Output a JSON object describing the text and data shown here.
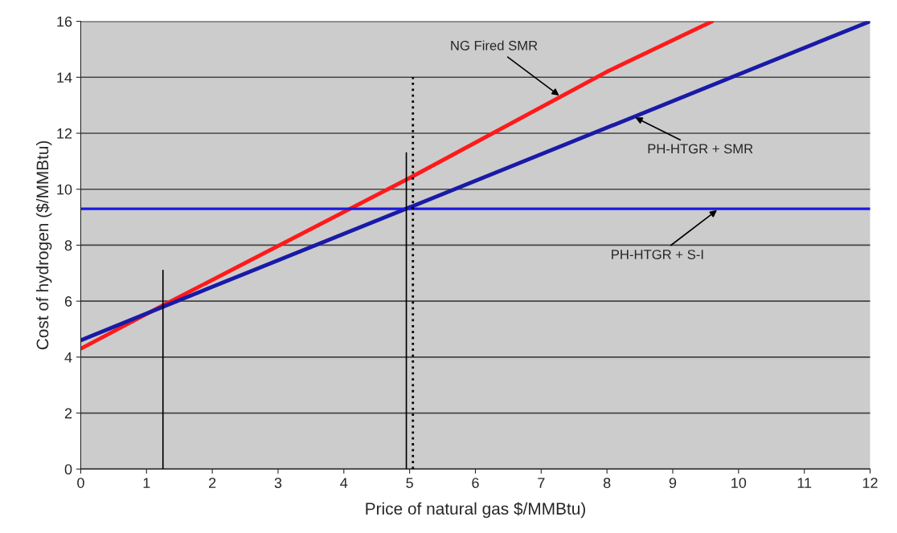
{
  "chart_data": {
    "type": "line",
    "xlabel": "Price of natural gas $/MMBtu)",
    "ylabel": "Cost of hydrogen ($/MMBtu)",
    "xlim": [
      0,
      12
    ],
    "ylim": [
      0,
      16
    ],
    "xticks": [
      0,
      1,
      2,
      3,
      4,
      5,
      6,
      7,
      8,
      9,
      10,
      11,
      12
    ],
    "yticks": [
      0,
      2,
      4,
      6,
      8,
      10,
      12,
      14,
      16
    ],
    "grid": "y",
    "legend": false,
    "marker": "none",
    "series": [
      {
        "color": "#ff1a1a",
        "x": [
          0,
          1.25,
          5,
          8,
          9.6
        ],
        "values": [
          4.3,
          5.85,
          10.4,
          14.2,
          16
        ]
      },
      {
        "color": "#1a1aa8",
        "x": [
          0,
          1.25,
          5,
          10,
          12
        ],
        "values": [
          4.6,
          5.8,
          9.35,
          14.1,
          16
        ]
      },
      {
        "color": "#1a1ae0",
        "x": [
          0,
          12
        ],
        "values": [
          9.3,
          9.3
        ]
      },
      {
        "color": "#000000",
        "x": [
          1.25,
          1.25
        ],
        "values": [
          0,
          7.1
        ]
      },
      {
        "color": "#000000",
        "x": [
          4.95,
          4.95
        ],
        "values": [
          0,
          11.3
        ]
      },
      {
        "color": "#000000",
        "x": [
          5.05,
          5.05
        ],
        "values": [
          0,
          14
        ],
        "line_style": "dotted"
      }
    ],
    "annotations": [
      {
        "text": "NG Fired SMR",
        "x": 7.3,
        "y": 13.3
      },
      {
        "text": "PH-HTGR + SMR",
        "x": 8.4,
        "y": 12.6
      },
      {
        "text": "PH-HTGR + S-I",
        "x": 9.7,
        "y": 9.3
      }
    ]
  }
}
